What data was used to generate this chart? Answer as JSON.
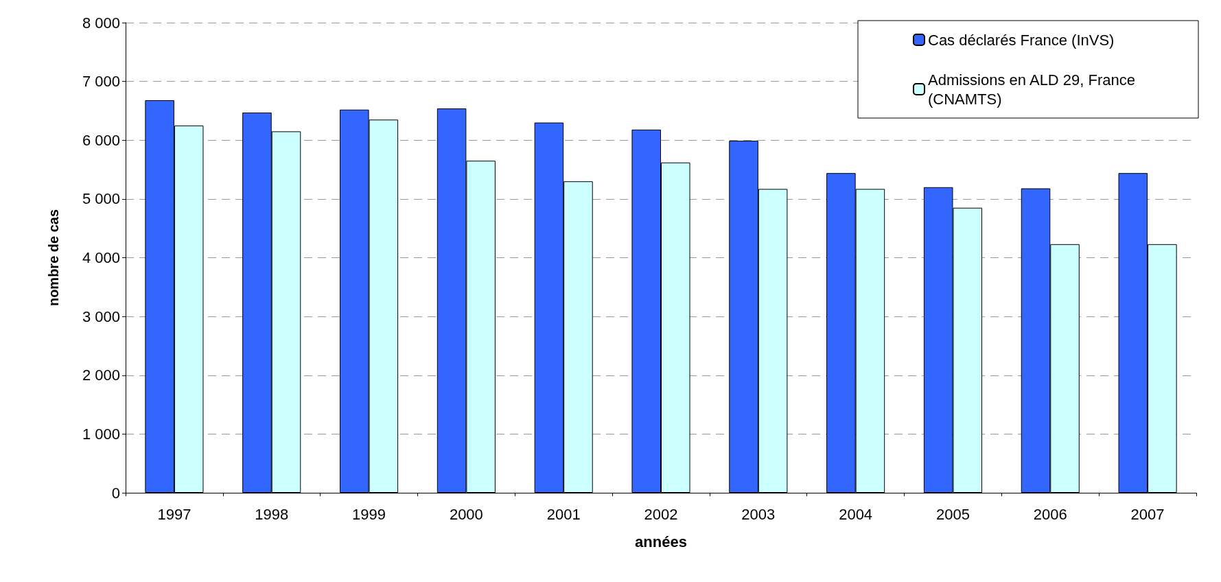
{
  "chart_data": {
    "type": "bar",
    "xlabel": "années",
    "ylabel": "nombre de cas",
    "categories": [
      "1997",
      "1998",
      "1999",
      "2000",
      "2001",
      "2002",
      "2003",
      "2004",
      "2005",
      "2006",
      "2007"
    ],
    "series": [
      {
        "name": "Cas déclarés France (InVS)",
        "color": "#3366ff",
        "values": [
          6680,
          6470,
          6520,
          6540,
          6300,
          6180,
          5990,
          5440,
          5200,
          5180,
          5440
        ]
      },
      {
        "name": "Admissions en ALD 29, France (CNAMTS)",
        "color": "#ccffff",
        "values": [
          6250,
          6150,
          6350,
          5650,
          5300,
          5620,
          5170,
          5170,
          4850,
          4230,
          4230
        ]
      }
    ],
    "ylim": [
      0,
      8000
    ],
    "yticks": [
      {
        "value": 0,
        "label": "0"
      },
      {
        "value": 1000,
        "label": "1 000"
      },
      {
        "value": 2000,
        "label": "2 000"
      },
      {
        "value": 3000,
        "label": "3 000"
      },
      {
        "value": 4000,
        "label": "4 000"
      },
      {
        "value": 5000,
        "label": "5 000"
      },
      {
        "value": 6000,
        "label": "6 000"
      },
      {
        "value": 7000,
        "label": "7 000"
      },
      {
        "value": 8000,
        "label": "8 000"
      }
    ],
    "grid": "y",
    "legend": "top right"
  }
}
